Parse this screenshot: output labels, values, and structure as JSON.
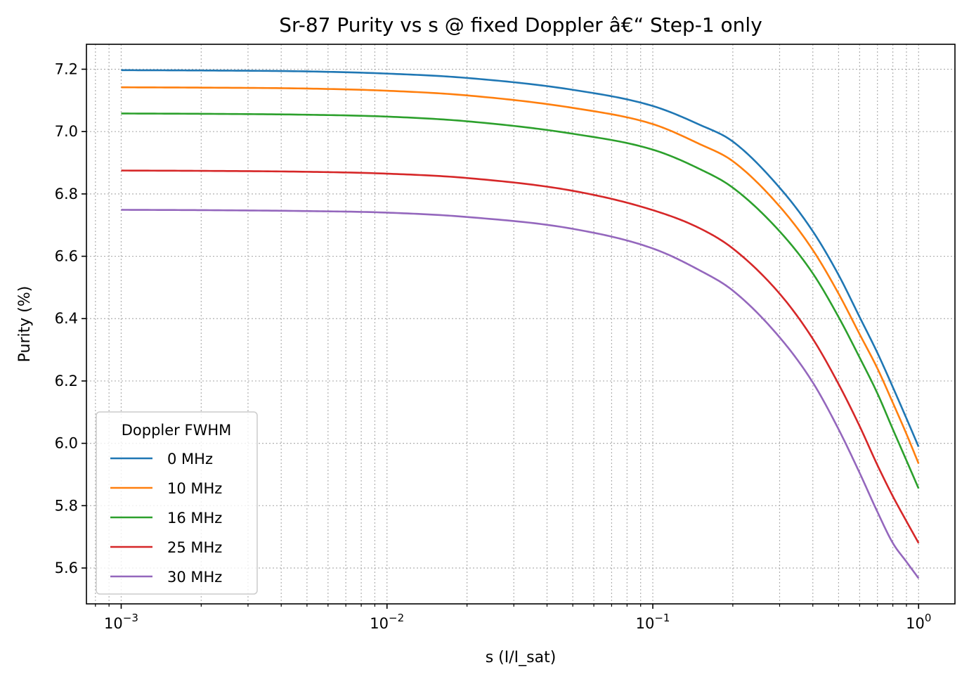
{
  "chart_data": {
    "type": "line",
    "title": "Sr-87 Purity vs s @ fixed Doppler â€“ Step-1 only",
    "xlabel": "s (I/I_sat)",
    "ylabel": "Purity (%)",
    "xscale": "log",
    "xlim": [
      0.00074,
      1.37
    ],
    "ylim": [
      5.485,
      7.28
    ],
    "grid": "on (major and minor, dotted)",
    "x_ticks": [
      {
        "value": 0.001,
        "base": "10",
        "exp": "−3"
      },
      {
        "value": 0.01,
        "base": "10",
        "exp": "−2"
      },
      {
        "value": 0.1,
        "base": "10",
        "exp": "−1"
      },
      {
        "value": 1,
        "base": "10",
        "exp": "0"
      }
    ],
    "y_ticks": [
      "5.6",
      "5.8",
      "6.0",
      "6.2",
      "6.4",
      "6.6",
      "6.8",
      "7.0",
      "7.2"
    ],
    "legend": {
      "title": "Doppler FWHM",
      "placement": "lower-left"
    },
    "x": [
      0.001,
      0.002,
      0.005,
      0.01,
      0.02,
      0.05,
      0.1,
      0.15,
      0.2,
      0.3,
      0.4,
      0.5,
      0.6,
      0.7,
      0.8,
      0.9,
      1.0
    ],
    "series": [
      {
        "name": "0 MHz",
        "color": "#1f77b4",
        "values": [
          7.197,
          7.196,
          7.193,
          7.186,
          7.172,
          7.134,
          7.082,
          7.022,
          6.968,
          6.82,
          6.68,
          6.54,
          6.405,
          6.29,
          6.18,
          6.08,
          5.989
        ]
      },
      {
        "name": "10 MHz",
        "color": "#ff7f0e",
        "values": [
          7.142,
          7.141,
          7.138,
          7.131,
          7.116,
          7.076,
          7.024,
          6.96,
          6.905,
          6.76,
          6.62,
          6.48,
          6.35,
          6.24,
          6.13,
          6.03,
          5.935
        ]
      },
      {
        "name": "16 MHz",
        "color": "#2ca02c",
        "values": [
          7.058,
          7.057,
          7.054,
          7.048,
          7.033,
          6.993,
          6.942,
          6.88,
          6.82,
          6.68,
          6.545,
          6.405,
          6.275,
          6.16,
          6.045,
          5.945,
          5.855
        ]
      },
      {
        "name": "25 MHz",
        "color": "#d62728",
        "values": [
          6.875,
          6.874,
          6.871,
          6.865,
          6.851,
          6.81,
          6.748,
          6.69,
          6.625,
          6.48,
          6.335,
          6.19,
          6.055,
          5.93,
          5.83,
          5.75,
          5.68
        ]
      },
      {
        "name": "30 MHz",
        "color": "#9467bd",
        "values": [
          6.749,
          6.748,
          6.745,
          6.74,
          6.726,
          6.688,
          6.625,
          6.555,
          6.49,
          6.34,
          6.195,
          6.045,
          5.905,
          5.78,
          5.68,
          5.62,
          5.567
        ]
      }
    ]
  }
}
